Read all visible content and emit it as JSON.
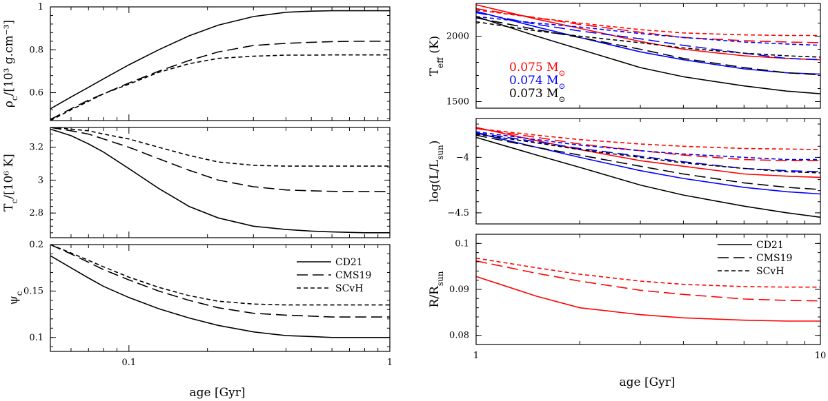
{
  "figure": {
    "left_xlabel": "age [Gyr]",
    "right_xlabel": "age [Gyr]"
  },
  "legend": {
    "entries": [
      {
        "style": "solid",
        "label": "CD21"
      },
      {
        "style": "longdash",
        "label": "CMS19"
      },
      {
        "style": "shortdash",
        "label": "SCvH"
      }
    ]
  },
  "mass_labels": [
    {
      "value": "0.075",
      "unit": "M",
      "color": "#ff0000"
    },
    {
      "value": "0.074",
      "unit": "M",
      "color": "#0000ff"
    },
    {
      "value": "0.073",
      "unit": "M",
      "color": "#000000"
    }
  ],
  "colors": {
    "0.075": "#ff0000",
    "0.074": "#0000ff",
    "0.073": "#000000"
  },
  "chart_data": [
    {
      "id": "rho",
      "type": "line",
      "xscale": "log",
      "xlim": [
        0.05,
        1
      ],
      "ylim": [
        0.47,
        1.0
      ],
      "ylabel_main": "ρ",
      "ylabel_sub": "c",
      "ylabel_rest": "/[10³ g.cm⁻³]",
      "yticks": [
        0.6,
        0.8,
        1
      ],
      "ytick_labels": [
        "0.6",
        "0.8",
        "1"
      ],
      "xtick_labels": [],
      "series": [
        {
          "name": "CD21",
          "mass": "0.073",
          "dash": "solid",
          "x": [
            0.05,
            0.06,
            0.07,
            0.08,
            0.1,
            0.13,
            0.17,
            0.22,
            0.3,
            0.4,
            0.5,
            0.6,
            0.8,
            1.0
          ],
          "y": [
            0.525,
            0.58,
            0.625,
            0.665,
            0.73,
            0.8,
            0.865,
            0.915,
            0.955,
            0.975,
            0.98,
            0.982,
            0.982,
            0.982
          ]
        },
        {
          "name": "CMS19",
          "mass": "0.073",
          "dash": "longdash",
          "x": [
            0.05,
            0.06,
            0.07,
            0.08,
            0.1,
            0.13,
            0.17,
            0.22,
            0.3,
            0.4,
            0.5,
            0.6,
            0.8,
            1.0
          ],
          "y": [
            0.475,
            0.525,
            0.565,
            0.595,
            0.645,
            0.7,
            0.75,
            0.79,
            0.82,
            0.83,
            0.835,
            0.838,
            0.84,
            0.84
          ]
        },
        {
          "name": "SCvH",
          "mass": "0.073",
          "dash": "shortdash",
          "x": [
            0.05,
            0.06,
            0.07,
            0.08,
            0.1,
            0.13,
            0.17,
            0.22,
            0.3,
            0.4,
            0.5,
            0.6,
            0.8,
            1.0
          ],
          "y": [
            0.47,
            0.52,
            0.56,
            0.595,
            0.64,
            0.695,
            0.735,
            0.76,
            0.77,
            0.775,
            0.775,
            0.776,
            0.776,
            0.776
          ]
        }
      ]
    },
    {
      "id": "tc",
      "type": "line",
      "xscale": "log",
      "xlim": [
        0.05,
        1
      ],
      "ylim": [
        2.65,
        3.32
      ],
      "ylabel_main": "T",
      "ylabel_sub": "c",
      "ylabel_rest": "/[10⁶ K]",
      "yticks": [
        2.8,
        3.0,
        3.2
      ],
      "ytick_labels": [
        "2.8",
        "3",
        "3.2"
      ],
      "xtick_labels": [],
      "series": [
        {
          "name": "CD21",
          "mass": "0.073",
          "dash": "solid",
          "x": [
            0.05,
            0.06,
            0.07,
            0.08,
            0.1,
            0.13,
            0.17,
            0.22,
            0.3,
            0.4,
            0.5,
            0.6,
            0.8,
            1.0
          ],
          "y": [
            3.31,
            3.27,
            3.22,
            3.17,
            3.07,
            2.95,
            2.84,
            2.77,
            2.72,
            2.7,
            2.69,
            2.685,
            2.68,
            2.68
          ]
        },
        {
          "name": "CMS19",
          "mass": "0.073",
          "dash": "longdash",
          "x": [
            0.05,
            0.06,
            0.07,
            0.08,
            0.1,
            0.13,
            0.17,
            0.22,
            0.3,
            0.4,
            0.5,
            0.6,
            0.8,
            1.0
          ],
          "y": [
            3.32,
            3.3,
            3.28,
            3.25,
            3.2,
            3.13,
            3.06,
            3.0,
            2.96,
            2.94,
            2.935,
            2.932,
            2.93,
            2.93
          ]
        },
        {
          "name": "SCvH",
          "mass": "0.073",
          "dash": "shortdash",
          "x": [
            0.05,
            0.06,
            0.07,
            0.08,
            0.1,
            0.13,
            0.17,
            0.22,
            0.3,
            0.4,
            0.5,
            0.6,
            0.8,
            1.0
          ],
          "y": [
            3.32,
            3.31,
            3.3,
            3.28,
            3.25,
            3.2,
            3.15,
            3.11,
            3.09,
            3.085,
            3.085,
            3.085,
            3.085,
            3.085
          ]
        }
      ]
    },
    {
      "id": "psi",
      "type": "line",
      "xscale": "log",
      "xlim": [
        0.05,
        1
      ],
      "ylim": [
        0.085,
        0.2
      ],
      "ylabel_main": "ψ",
      "ylabel_sub": "c",
      "ylabel_rest": "",
      "yticks": [
        0.1,
        0.15,
        0.2
      ],
      "ytick_labels": [
        "0.1",
        "0.15",
        "0.2"
      ],
      "xticks": [
        0.1,
        1
      ],
      "xtick_labels": [
        "0.1",
        "1"
      ],
      "series": [
        {
          "name": "CD21",
          "mass": "0.073",
          "dash": "solid",
          "x": [
            0.05,
            0.06,
            0.07,
            0.08,
            0.1,
            0.13,
            0.17,
            0.22,
            0.3,
            0.4,
            0.5,
            0.6,
            0.8,
            1.0
          ],
          "y": [
            0.188,
            0.175,
            0.164,
            0.155,
            0.143,
            0.131,
            0.121,
            0.113,
            0.106,
            0.102,
            0.101,
            0.1,
            0.1,
            0.1
          ]
        },
        {
          "name": "CMS19",
          "mass": "0.073",
          "dash": "longdash",
          "x": [
            0.05,
            0.06,
            0.07,
            0.08,
            0.1,
            0.13,
            0.17,
            0.22,
            0.3,
            0.4,
            0.5,
            0.6,
            0.8,
            1.0
          ],
          "y": [
            0.2,
            0.19,
            0.181,
            0.173,
            0.162,
            0.15,
            0.14,
            0.132,
            0.126,
            0.124,
            0.123,
            0.122,
            0.122,
            0.122
          ]
        },
        {
          "name": "SCvH",
          "mass": "0.073",
          "dash": "shortdash",
          "x": [
            0.05,
            0.06,
            0.07,
            0.08,
            0.1,
            0.13,
            0.17,
            0.22,
            0.3,
            0.4,
            0.5,
            0.6,
            0.8,
            1.0
          ],
          "y": [
            0.2,
            0.191,
            0.183,
            0.176,
            0.165,
            0.154,
            0.145,
            0.139,
            0.136,
            0.135,
            0.135,
            0.135,
            0.135,
            0.135
          ]
        }
      ]
    },
    {
      "id": "teff",
      "type": "line",
      "xscale": "log",
      "xlim": [
        1,
        10
      ],
      "ylim": [
        1450,
        2250
      ],
      "ylabel_main": "T",
      "ylabel_sub": "eff",
      "ylabel_rest": "  (K)",
      "yticks": [
        1500,
        2000
      ],
      "ytick_labels": [
        "1500",
        "2000"
      ],
      "xtick_labels": [],
      "series": [
        {
          "name": "CD21",
          "mass": "0.075",
          "dash": "solid",
          "x": [
            1,
            1.5,
            2,
            3,
            4,
            6,
            8,
            10
          ],
          "y": [
            2240,
            2130,
            2060,
            1960,
            1900,
            1850,
            1830,
            1820
          ]
        },
        {
          "name": "CMS19",
          "mass": "0.075",
          "dash": "longdash",
          "x": [
            1,
            1.5,
            2,
            3,
            4,
            6,
            8,
            10
          ],
          "y": [
            2210,
            2140,
            2090,
            2030,
            1990,
            1965,
            1955,
            1950
          ]
        },
        {
          "name": "SCvH",
          "mass": "0.075",
          "dash": "shortdash",
          "x": [
            1,
            1.5,
            2,
            3,
            4,
            6,
            8,
            10
          ],
          "y": [
            2200,
            2140,
            2100,
            2050,
            2025,
            2010,
            2005,
            2005
          ]
        },
        {
          "name": "CD21",
          "mass": "0.074",
          "dash": "solid",
          "x": [
            1,
            1.5,
            2,
            3,
            4,
            6,
            8,
            10
          ],
          "y": [
            2190,
            2070,
            1990,
            1880,
            1820,
            1750,
            1720,
            1710
          ]
        },
        {
          "name": "CMS19",
          "mass": "0.074",
          "dash": "longdash",
          "x": [
            1,
            1.5,
            2,
            3,
            4,
            6,
            8,
            10
          ],
          "y": [
            2180,
            2090,
            2040,
            1980,
            1930,
            1870,
            1830,
            1820
          ]
        },
        {
          "name": "SCvH",
          "mass": "0.074",
          "dash": "shortdash",
          "x": [
            1,
            1.5,
            2,
            3,
            4,
            6,
            8,
            10
          ],
          "y": [
            2150,
            2100,
            2070,
            2020,
            1990,
            1955,
            1940,
            1930
          ]
        },
        {
          "name": "CD21",
          "mass": "0.073",
          "dash": "solid",
          "x": [
            1,
            1.5,
            2,
            3,
            4,
            6,
            8,
            10
          ],
          "y": [
            2150,
            2000,
            1900,
            1760,
            1690,
            1620,
            1580,
            1560
          ]
        },
        {
          "name": "CMS19",
          "mass": "0.073",
          "dash": "longdash",
          "x": [
            1,
            1.5,
            2,
            3,
            4,
            6,
            8,
            10
          ],
          "y": [
            2140,
            2050,
            1990,
            1900,
            1830,
            1760,
            1720,
            1705
          ]
        },
        {
          "name": "SCvH",
          "mass": "0.073",
          "dash": "shortdash",
          "x": [
            1,
            1.5,
            2,
            3,
            4,
            6,
            8,
            10
          ],
          "y": [
            2110,
            2040,
            2000,
            1950,
            1910,
            1870,
            1850,
            1840
          ]
        }
      ]
    },
    {
      "id": "lum",
      "type": "line",
      "xscale": "log",
      "xlim": [
        1,
        10
      ],
      "ylim": [
        -4.6,
        -3.65
      ],
      "ylabel_main": "log(L/L",
      "ylabel_sub": "sun",
      "ylabel_rest": ")",
      "yticks": [
        -4.5,
        -4.0
      ],
      "ytick_labels": [
        "−4.5",
        "−4"
      ],
      "xtick_labels": [],
      "series": [
        {
          "name": "CD21",
          "mass": "0.075",
          "dash": "solid",
          "x": [
            1,
            1.5,
            2,
            3,
            4,
            6,
            8,
            10
          ],
          "y": [
            -3.73,
            -3.85,
            -3.93,
            -4.03,
            -4.08,
            -4.15,
            -4.17,
            -4.18
          ]
        },
        {
          "name": "CMS19",
          "mass": "0.075",
          "dash": "longdash",
          "x": [
            1,
            1.5,
            2,
            3,
            4,
            6,
            8,
            10
          ],
          "y": [
            -3.74,
            -3.82,
            -3.88,
            -3.94,
            -3.98,
            -4.02,
            -4.03,
            -4.03
          ]
        },
        {
          "name": "SCvH",
          "mass": "0.075",
          "dash": "shortdash",
          "x": [
            1,
            1.5,
            2,
            3,
            4,
            6,
            8,
            10
          ],
          "y": [
            -3.74,
            -3.8,
            -3.84,
            -3.88,
            -3.9,
            -3.92,
            -3.925,
            -3.93
          ]
        },
        {
          "name": "CD21",
          "mass": "0.074",
          "dash": "solid",
          "x": [
            1,
            1.5,
            2,
            3,
            4,
            6,
            8,
            10
          ],
          "y": [
            -3.78,
            -3.91,
            -4.0,
            -4.12,
            -4.19,
            -4.27,
            -4.31,
            -4.33
          ]
        },
        {
          "name": "CMS19",
          "mass": "0.074",
          "dash": "longdash",
          "x": [
            1,
            1.5,
            2,
            3,
            4,
            6,
            8,
            10
          ],
          "y": [
            -3.78,
            -3.86,
            -3.92,
            -3.99,
            -4.04,
            -4.1,
            -4.12,
            -4.13
          ]
        },
        {
          "name": "SCvH",
          "mass": "0.074",
          "dash": "shortdash",
          "x": [
            1,
            1.5,
            2,
            3,
            4,
            6,
            8,
            10
          ],
          "y": [
            -3.77,
            -3.84,
            -3.89,
            -3.94,
            -3.97,
            -4.0,
            -4.02,
            -4.02
          ]
        },
        {
          "name": "CD21",
          "mass": "0.073",
          "dash": "solid",
          "x": [
            1,
            1.5,
            2,
            3,
            4,
            6,
            8,
            10
          ],
          "y": [
            -3.82,
            -3.98,
            -4.09,
            -4.25,
            -4.34,
            -4.44,
            -4.5,
            -4.54
          ]
        },
        {
          "name": "CMS19",
          "mass": "0.073",
          "dash": "longdash",
          "x": [
            1,
            1.5,
            2,
            3,
            4,
            6,
            8,
            10
          ],
          "y": [
            -3.8,
            -3.91,
            -3.98,
            -4.08,
            -4.15,
            -4.23,
            -4.27,
            -4.29
          ]
        },
        {
          "name": "SCvH",
          "mass": "0.073",
          "dash": "shortdash",
          "x": [
            1,
            1.5,
            2,
            3,
            4,
            6,
            8,
            10
          ],
          "y": [
            -3.79,
            -3.87,
            -3.93,
            -4.0,
            -4.05,
            -4.1,
            -4.13,
            -4.14
          ]
        }
      ]
    },
    {
      "id": "radius",
      "type": "line",
      "xscale": "log",
      "xlim": [
        1,
        10
      ],
      "ylim": [
        0.078,
        0.102
      ],
      "ylabel_main": "R/R",
      "ylabel_sub": "sun",
      "ylabel_rest": "",
      "yticks": [
        0.08,
        0.09,
        0.1
      ],
      "ytick_labels": [
        "0.08",
        "0.09",
        "0.1"
      ],
      "xticks": [
        1,
        10
      ],
      "xtick_labels": [
        "1",
        "10"
      ],
      "series": [
        {
          "name": "CD21",
          "mass": "0.075",
          "dash": "solid",
          "x": [
            1,
            1.5,
            2,
            3,
            4,
            6,
            8,
            10
          ],
          "y": [
            0.0928,
            0.0885,
            0.086,
            0.0845,
            0.0838,
            0.0833,
            0.0831,
            0.0831
          ]
        },
        {
          "name": "CMS19",
          "mass": "0.075",
          "dash": "longdash",
          "x": [
            1,
            1.5,
            2,
            3,
            4,
            6,
            8,
            10
          ],
          "y": [
            0.0962,
            0.0935,
            0.0918,
            0.0898,
            0.0889,
            0.0879,
            0.0876,
            0.0875
          ]
        },
        {
          "name": "SCvH",
          "mass": "0.075",
          "dash": "shortdash",
          "x": [
            1,
            1.5,
            2,
            3,
            4,
            6,
            8,
            10
          ],
          "y": [
            0.0968,
            0.0947,
            0.0933,
            0.0918,
            0.0911,
            0.0906,
            0.0905,
            0.0905
          ]
        }
      ]
    }
  ]
}
